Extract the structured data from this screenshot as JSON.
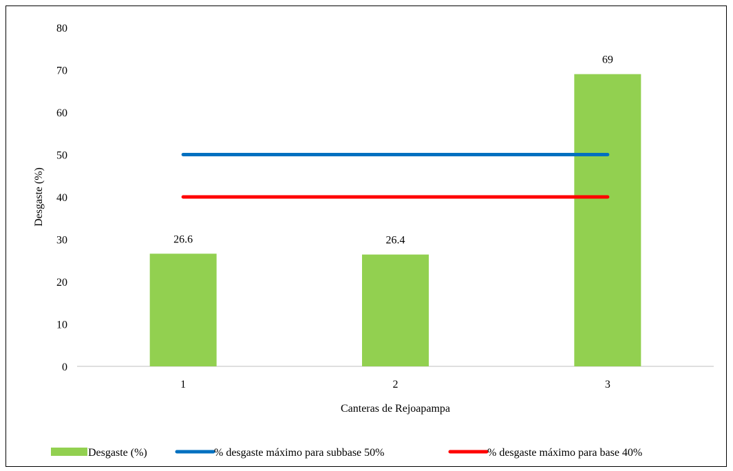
{
  "chart_data": {
    "type": "bar",
    "title": "",
    "xlabel": "Canteras de Rejoapampa",
    "ylabel": "Desgaste (%)",
    "ylim": [
      0,
      80
    ],
    "yticks": [
      0,
      10,
      20,
      30,
      40,
      50,
      60,
      70,
      80
    ],
    "categories": [
      "1",
      "2",
      "3"
    ],
    "grid": false,
    "legend_position": "bottom",
    "series": [
      {
        "name": "Desgaste (%)",
        "kind": "bar",
        "color": "#92d050",
        "values": [
          26.6,
          26.4,
          69
        ],
        "data_labels": [
          "26.6",
          "26.4",
          "69"
        ]
      },
      {
        "name": "% desgaste máximo para subbase 50%",
        "kind": "line",
        "color": "#0070c0",
        "values": [
          50,
          50,
          50
        ]
      },
      {
        "name": "% desgaste máximo para base 40%",
        "kind": "line",
        "color": "#ff0000",
        "values": [
          40,
          40,
          40
        ]
      }
    ]
  }
}
